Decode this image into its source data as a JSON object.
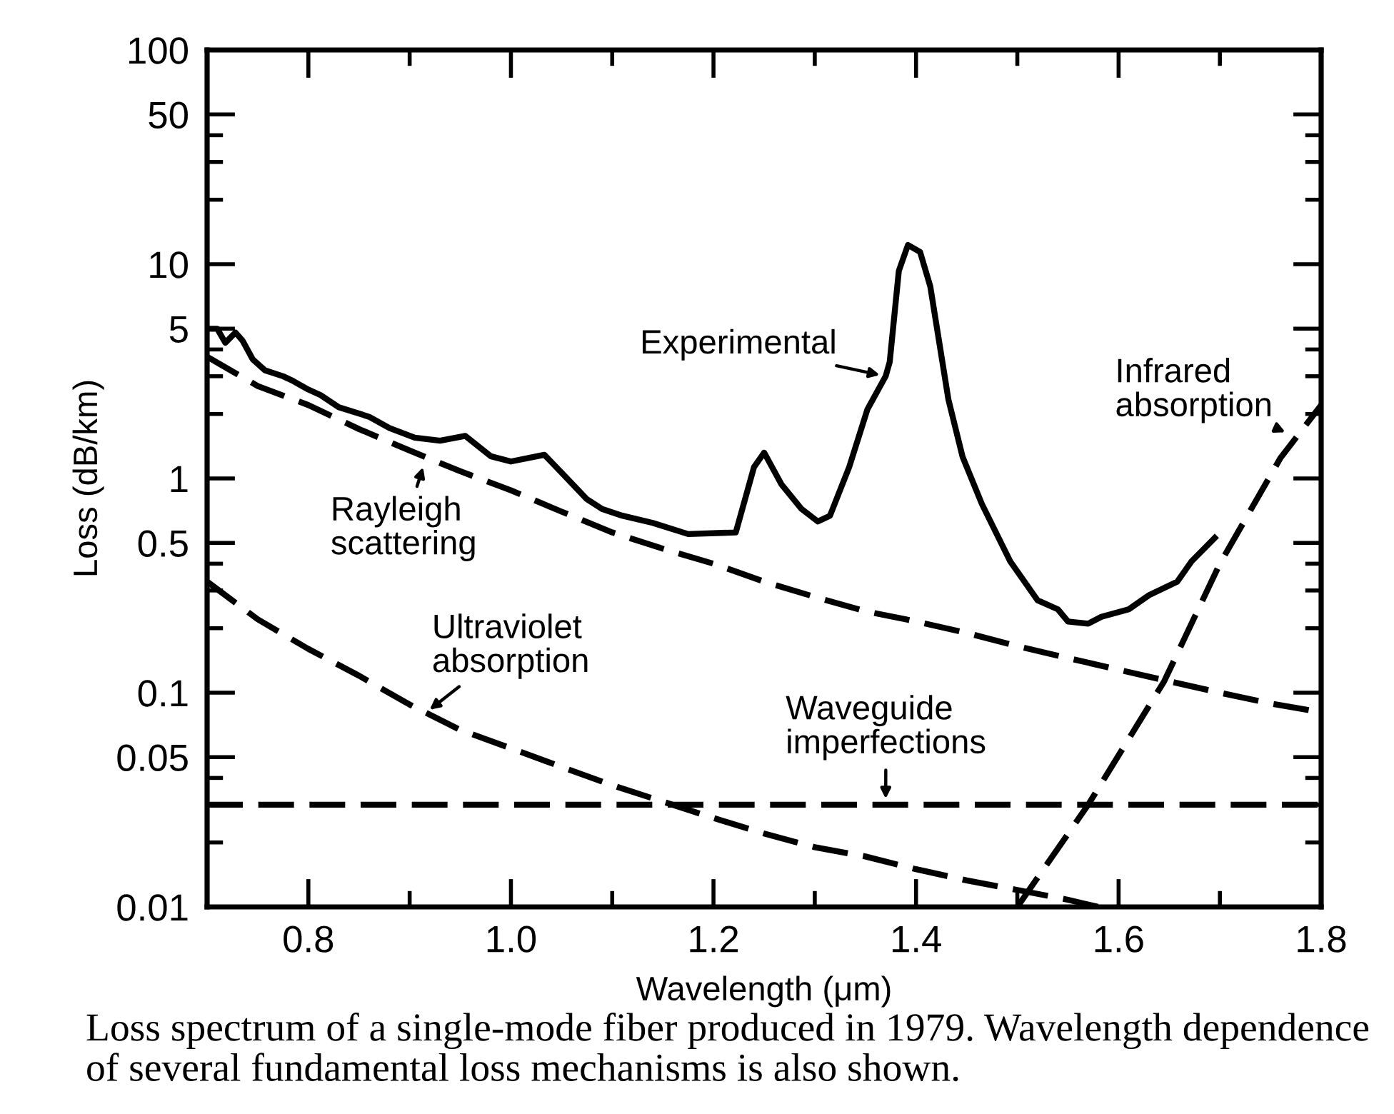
{
  "chart_data": {
    "type": "line",
    "xlabel": "Wavelength (μm)",
    "ylabel": "Loss (dB/km)",
    "log": "y",
    "xlim": [
      0.7,
      1.8
    ],
    "ylim": [
      0.01,
      100
    ],
    "xticks": [
      {
        "value": 0.8,
        "label": "0.8"
      },
      {
        "value": 0.9,
        "label": null
      },
      {
        "value": 1.0,
        "label": "1.0"
      },
      {
        "value": 1.1,
        "label": null
      },
      {
        "value": 1.2,
        "label": "1.2"
      },
      {
        "value": 1.3,
        "label": null
      },
      {
        "value": 1.4,
        "label": "1.4"
      },
      {
        "value": 1.5,
        "label": null
      },
      {
        "value": 1.6,
        "label": "1.6"
      },
      {
        "value": 1.7,
        "label": null
      },
      {
        "value": 1.8,
        "label": "1.8"
      }
    ],
    "yticks": [
      0.01,
      {
        "value": 0.02,
        "label": null
      },
      {
        "value": 0.03,
        "label": null
      },
      {
        "value": 0.04,
        "label": null
      },
      0.05,
      0.1,
      {
        "value": 0.2,
        "label": null
      },
      {
        "value": 0.3,
        "label": null
      },
      {
        "value": 0.4,
        "label": null
      },
      0.5,
      1,
      {
        "value": 2,
        "label": null
      },
      {
        "value": 3,
        "label": null
      },
      {
        "value": 4,
        "label": null
      },
      5,
      10,
      {
        "value": 20,
        "label": null
      },
      {
        "value": 30,
        "label": null
      },
      {
        "value": 40,
        "label": null
      },
      50,
      100
    ],
    "series": [
      {
        "color": "#000000",
        "line_style": "solid",
        "x": [
          0.7,
          0.71,
          0.718,
          0.728,
          0.735,
          0.745,
          0.757,
          0.775,
          0.785,
          0.8,
          0.812,
          0.83,
          0.86,
          0.88,
          0.905,
          0.93,
          0.955,
          0.98,
          1.0,
          1.033,
          1.052,
          1.075,
          1.09,
          1.11,
          1.14,
          1.175,
          1.222,
          1.24,
          1.25,
          1.267,
          1.287,
          1.303,
          1.315,
          1.334,
          1.352,
          1.37,
          1.374,
          1.383,
          1.392,
          1.404,
          1.414,
          1.432,
          1.446,
          1.465,
          1.493,
          1.52,
          1.54,
          1.55,
          1.57,
          1.583,
          1.61,
          1.63,
          1.658,
          1.672,
          1.697
        ],
        "values": [
          5.0,
          5.0,
          4.3,
          4.8,
          4.4,
          3.6,
          3.2,
          3.0,
          2.85,
          2.6,
          2.45,
          2.15,
          1.94,
          1.72,
          1.55,
          1.5,
          1.58,
          1.27,
          1.2,
          1.29,
          1.04,
          0.8,
          0.72,
          0.67,
          0.62,
          0.55,
          0.56,
          1.13,
          1.32,
          0.94,
          0.72,
          0.63,
          0.67,
          1.13,
          2.1,
          3.0,
          3.5,
          9.3,
          12.3,
          11.4,
          7.9,
          2.33,
          1.26,
          0.76,
          0.41,
          0.27,
          0.245,
          0.215,
          0.21,
          0.226,
          0.245,
          0.285,
          0.33,
          0.41,
          0.54
        ]
      },
      {
        "color": "#000000",
        "line_style": "dashed",
        "x": [
          0.7,
          0.75,
          0.8,
          0.85,
          0.9,
          0.95,
          1.0,
          1.05,
          1.1,
          1.15,
          1.2,
          1.25,
          1.3,
          1.35,
          1.4,
          1.45,
          1.5,
          1.55,
          1.6,
          1.65,
          1.7,
          1.75,
          1.8
        ],
        "values": [
          3.7,
          2.7,
          2.2,
          1.7,
          1.35,
          1.08,
          0.88,
          0.7,
          0.56,
          0.47,
          0.4,
          0.33,
          0.28,
          0.24,
          0.215,
          0.19,
          0.165,
          0.145,
          0.128,
          0.113,
          0.1,
          0.089,
          0.081
        ]
      },
      {
        "color": "#000000",
        "line_style": "dashed",
        "x": [
          0.7,
          0.75,
          0.8,
          0.85,
          0.9,
          0.95,
          1.0,
          1.05,
          1.1,
          1.15,
          1.2,
          1.25,
          1.3,
          1.35,
          1.4,
          1.45,
          1.5,
          1.55,
          1.58
        ],
        "values": [
          0.33,
          0.22,
          0.16,
          0.12,
          0.088,
          0.067,
          0.055,
          0.045,
          0.037,
          0.031,
          0.026,
          0.022,
          0.019,
          0.0172,
          0.015,
          0.0133,
          0.012,
          0.0108,
          0.01
        ]
      },
      {
        "color": "#000000",
        "line_style": "dashed",
        "x": [
          0.7,
          1.8
        ],
        "values": [
          0.03,
          0.03
        ]
      },
      {
        "color": "#000000",
        "line_style": "dashed",
        "x": [
          1.5,
          1.57,
          1.645,
          1.7,
          1.76,
          1.8
        ],
        "values": [
          0.01,
          0.03,
          0.113,
          0.4,
          1.25,
          2.2
        ]
      }
    ],
    "annotations": [
      {
        "text": "Experimental",
        "x": 1.37,
        "y": 3.0
      },
      {
        "text": "Rayleigh\nscattering",
        "x": 0.915,
        "y": 1.2
      },
      {
        "text": "Ultraviolet\nabsorption",
        "x": 0.915,
        "y": 0.08
      },
      {
        "text": "Waveguide\nimperfections",
        "x": 1.37,
        "y": 0.03
      },
      {
        "text": "Infrared\nabsorption",
        "x": 1.77,
        "y": 1.6
      },
      "Loss spectrum of a single-mode fiber produced in 1979. Wavelength dependence\nof several fundamental loss mechanisms is also shown."
    ]
  }
}
